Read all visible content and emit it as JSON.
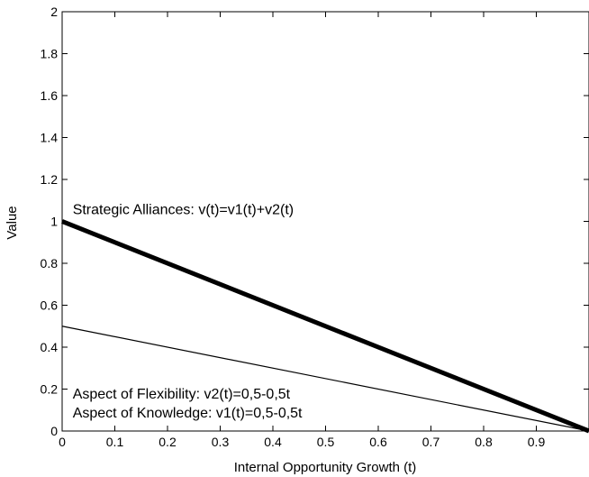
{
  "chart_data": {
    "type": "line",
    "title": "",
    "xlabel": "Internal Opportunity Growth (t)",
    "ylabel": "Value",
    "xlim": [
      0,
      1
    ],
    "ylim": [
      0,
      2
    ],
    "xticks": [
      "0",
      "0.1",
      "0.2",
      "0.3",
      "0.4",
      "0.5",
      "0.6",
      "0.7",
      "0.8",
      "0.9"
    ],
    "yticks": [
      "0",
      "0.2",
      "0.4",
      "0.6",
      "0.8",
      "1",
      "1.2",
      "1.4",
      "1.6",
      "1.8",
      "2"
    ],
    "grid": false,
    "series": [
      {
        "name": "Strategic Alliances: v(t)=v1(t)+v2(t)",
        "x": [
          0,
          1
        ],
        "y": [
          1.0,
          0.0
        ],
        "color": "#000000",
        "weight": "thick"
      },
      {
        "name": "Aspect of Flexibility:  v2(t)=0,5-0,5t",
        "x": [
          0,
          1
        ],
        "y": [
          0.5,
          0.0
        ],
        "color": "#000000",
        "weight": "thin"
      }
    ],
    "annotations": [
      {
        "id": "alliances",
        "text": "Strategic Alliances: v(t)=v1(t)+v2(t)",
        "x": 0.02,
        "y": 1.035
      },
      {
        "id": "flexibility",
        "text": "Aspect of Flexibility:  v2(t)=0,5-0,5t",
        "x": 0.02,
        "y": 0.155
      },
      {
        "id": "knowledge",
        "text": "Aspect of Knowledge: v1(t)=0,5-0,5t",
        "x": 0.02,
        "y": 0.065
      }
    ]
  }
}
